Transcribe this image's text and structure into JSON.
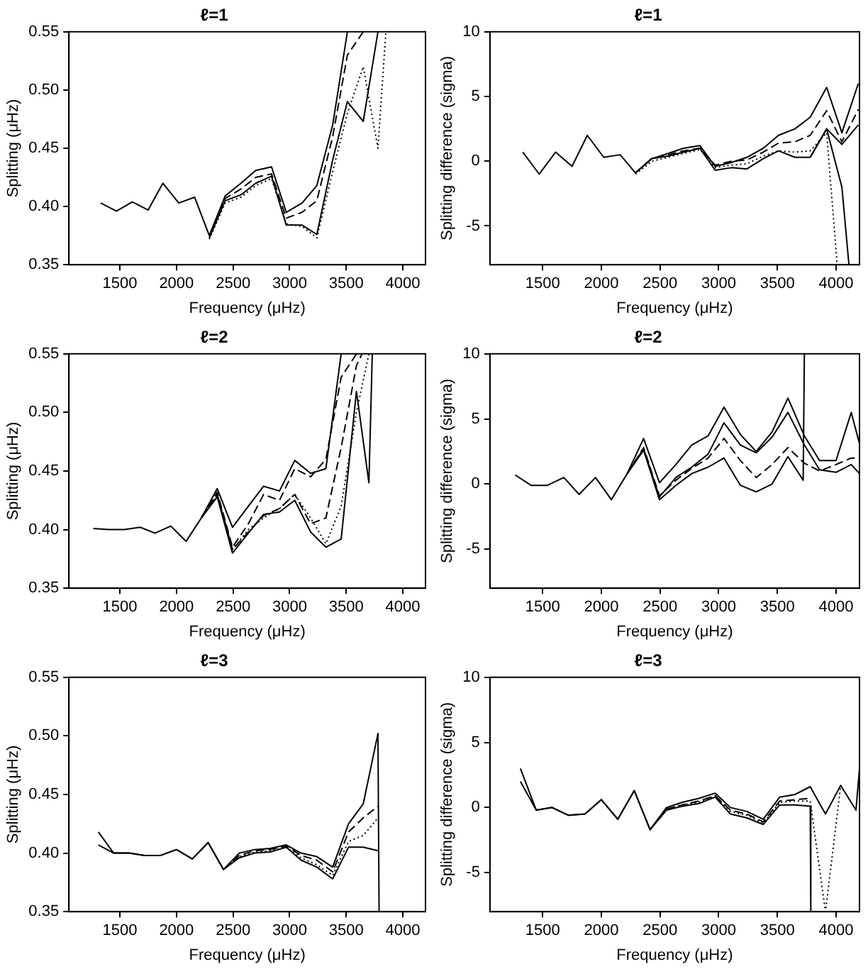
{
  "chart_data": [
    {
      "type": "line",
      "title": "ℓ=1",
      "xlabel": "Frequency (μHz)",
      "ylabel": "Splitting (μHz)",
      "xlim": [
        1050,
        4200
      ],
      "xticks": [
        1500,
        2000,
        2500,
        3000,
        3500,
        4000
      ],
      "ylim": [
        0.35,
        0.55
      ],
      "yticks": [
        {
          "value": 0.35,
          "label": "0.35"
        },
        {
          "value": 0.4,
          "label": "0.40"
        },
        {
          "value": 0.45,
          "label": "0.45"
        },
        {
          "value": 0.5,
          "label": "0.50"
        },
        {
          "value": 0.55,
          "label": "0.55"
        }
      ],
      "grid": false,
      "legend": false,
      "marker": "none",
      "series": [
        {
          "color": "#000000",
          "line_style": "solid",
          "x": [
            1330,
            1470,
            1610,
            1750,
            1880,
            2020,
            2160,
            2290,
            2430,
            2570,
            2700,
            2840,
            2970,
            3110,
            3240,
            3380,
            3510
          ],
          "values": [
            0.403,
            0.396,
            0.404,
            0.397,
            0.42,
            0.403,
            0.408,
            0.375,
            0.409,
            0.42,
            0.431,
            0.434,
            0.395,
            0.403,
            0.418,
            0.47,
            0.55
          ]
        },
        {
          "color": "#000000",
          "line_style": "dashed",
          "x": [
            2290,
            2430,
            2570,
            2700,
            2840,
            2970,
            3110,
            3240,
            3380,
            3510,
            3650
          ],
          "values": [
            0.375,
            0.407,
            0.415,
            0.425,
            0.428,
            0.39,
            0.395,
            0.405,
            0.46,
            0.53,
            0.55
          ]
        },
        {
          "color": "#000000",
          "line_style": "dotted",
          "x": [
            2290,
            2430,
            2570,
            2700,
            2840,
            2970,
            3110,
            3240,
            3380,
            3510,
            3650,
            3780,
            3850
          ],
          "values": [
            0.372,
            0.403,
            0.408,
            0.418,
            0.424,
            0.385,
            0.383,
            0.373,
            0.43,
            0.48,
            0.52,
            0.45,
            0.55
          ]
        },
        {
          "color": "#000000",
          "line_style": "solid",
          "x": [
            2290,
            2430,
            2570,
            2700,
            2840,
            2970,
            3110,
            3240,
            3380,
            3510,
            3650,
            3780
          ],
          "values": [
            0.373,
            0.405,
            0.41,
            0.42,
            0.426,
            0.384,
            0.384,
            0.376,
            0.44,
            0.49,
            0.473,
            0.55
          ]
        }
      ]
    },
    {
      "type": "line",
      "title": "ℓ=1",
      "xlabel": "Frequency (μHz)",
      "ylabel": "Splitting difference (sigma)",
      "xlim": [
        1050,
        4200
      ],
      "xticks": [
        1500,
        2000,
        2500,
        3000,
        3500,
        4000
      ],
      "ylim": [
        -8,
        10
      ],
      "yticks": [
        -5,
        0,
        5,
        10
      ],
      "grid": false,
      "legend": false,
      "marker": "none",
      "series": [
        {
          "color": "#000000",
          "line_style": "solid",
          "x": [
            1330,
            1470,
            1610,
            1750,
            1880,
            2020,
            2160,
            2290,
            2430,
            2570,
            2700,
            2840,
            2970,
            3110,
            3240,
            3380,
            3510,
            3650,
            3780,
            3920,
            4050,
            4190
          ],
          "values": [
            0.7,
            -1.0,
            0.7,
            -0.4,
            2.0,
            0.3,
            0.5,
            -0.9,
            0.2,
            0.6,
            1.0,
            1.2,
            -0.4,
            -0.1,
            0.3,
            1.0,
            2.0,
            2.5,
            3.4,
            5.7,
            2.2,
            6.0
          ]
        },
        {
          "color": "#000000",
          "line_style": "dashed",
          "x": [
            2290,
            2430,
            2570,
            2700,
            2840,
            2970,
            3110,
            3240,
            3380,
            3510,
            3650,
            3780,
            3920,
            4050,
            4190
          ],
          "values": [
            -0.9,
            0.2,
            0.5,
            0.8,
            1.0,
            -0.3,
            0.0,
            0.1,
            0.7,
            1.4,
            1.5,
            2.0,
            3.9,
            1.5,
            4.0
          ]
        },
        {
          "color": "#000000",
          "line_style": "dotted",
          "x": [
            2290,
            2430,
            2570,
            2700,
            2840,
            2970,
            3110,
            3240,
            3380,
            3510,
            3650,
            3780,
            3920,
            4010
          ],
          "values": [
            -1.0,
            0.0,
            0.3,
            0.6,
            0.9,
            -0.5,
            -0.3,
            -0.2,
            0.4,
            0.8,
            0.7,
            0.8,
            2.2,
            -8
          ]
        },
        {
          "color": "#000000",
          "line_style": "solid",
          "x": [
            2290,
            2430,
            2570,
            2700,
            2840,
            2970,
            3110,
            3240,
            3380,
            3510,
            3650,
            3780,
            3920,
            4050,
            4190
          ],
          "values": [
            -0.9,
            0.2,
            0.4,
            0.7,
            1.0,
            -0.7,
            -0.5,
            -0.6,
            0.2,
            0.8,
            0.3,
            0.3,
            2.5,
            1.3,
            2.8
          ]
        },
        {
          "color": "#000000",
          "line_style": "solid",
          "x": [
            3780,
            3920,
            4050,
            4110
          ],
          "values": [
            0.3,
            2.5,
            -2,
            -8
          ]
        }
      ]
    },
    {
      "type": "line",
      "title": "ℓ=2",
      "xlabel": "Frequency (μHz)",
      "ylabel": "Splitting (μHz)",
      "xlim": [
        1050,
        4200
      ],
      "xticks": [
        1500,
        2000,
        2500,
        3000,
        3500,
        4000
      ],
      "ylim": [
        0.35,
        0.55
      ],
      "yticks": [
        {
          "value": 0.35,
          "label": "0.35"
        },
        {
          "value": 0.4,
          "label": "0.40"
        },
        {
          "value": 0.45,
          "label": "0.45"
        },
        {
          "value": 0.5,
          "label": "0.50"
        },
        {
          "value": 0.55,
          "label": "0.55"
        }
      ],
      "grid": false,
      "legend": false,
      "marker": "none",
      "series": [
        {
          "color": "#000000",
          "line_style": "solid",
          "x": [
            1265,
            1400,
            1540,
            1680,
            1810,
            1950,
            2085,
            2220,
            2360,
            2495,
            2635,
            2770,
            2910,
            3045,
            3185,
            3320,
            3455
          ],
          "values": [
            0.401,
            0.4,
            0.4,
            0.402,
            0.397,
            0.403,
            0.39,
            0.41,
            0.435,
            0.402,
            0.42,
            0.437,
            0.433,
            0.459,
            0.448,
            0.452,
            0.55
          ]
        },
        {
          "color": "#000000",
          "line_style": "dashed",
          "x": [
            2220,
            2360,
            2495,
            2635,
            2770,
            2910,
            3045,
            3185,
            3320,
            3455,
            3590
          ],
          "values": [
            0.41,
            0.432,
            0.385,
            0.405,
            0.43,
            0.425,
            0.452,
            0.445,
            0.46,
            0.53,
            0.55
          ]
        },
        {
          "color": "#000000",
          "line_style": "dashed",
          "x": [
            2220,
            2360,
            2495,
            2635,
            2770,
            2910,
            3045,
            3185,
            3320,
            3455,
            3590,
            3640
          ],
          "values": [
            0.41,
            0.43,
            0.383,
            0.398,
            0.412,
            0.418,
            0.43,
            0.405,
            0.41,
            0.47,
            0.54,
            0.55
          ]
        },
        {
          "color": "#000000",
          "line_style": "dotted",
          "x": [
            2220,
            2360,
            2495,
            2635,
            2770,
            2910,
            3045,
            3185,
            3320,
            3455,
            3590,
            3700
          ],
          "values": [
            0.41,
            0.43,
            0.383,
            0.4,
            0.41,
            0.418,
            0.43,
            0.41,
            0.388,
            0.42,
            0.5,
            0.55
          ]
        },
        {
          "color": "#000000",
          "line_style": "solid",
          "x": [
            2220,
            2360,
            2495,
            2635,
            2770,
            2910,
            3045,
            3185,
            3320,
            3455,
            3590,
            3700,
            3730
          ],
          "values": [
            0.41,
            0.428,
            0.38,
            0.397,
            0.413,
            0.415,
            0.425,
            0.398,
            0.385,
            0.392,
            0.518,
            0.44,
            0.55
          ]
        }
      ]
    },
    {
      "type": "line",
      "title": "ℓ=2",
      "xlabel": "Frequency (μHz)",
      "ylabel": "Splitting difference (sigma)",
      "xlim": [
        1050,
        4200
      ],
      "xticks": [
        1500,
        2000,
        2500,
        3000,
        3500,
        4000
      ],
      "ylim": [
        -8,
        10
      ],
      "yticks": [
        -5,
        0,
        5,
        10
      ],
      "grid": false,
      "legend": false,
      "marker": "none",
      "series": [
        {
          "color": "#000000",
          "line_style": "solid",
          "x": [
            1265,
            1400,
            1540,
            1680,
            1810,
            1950,
            2085,
            2220,
            2360,
            2495,
            2635,
            2770,
            2910,
            3045,
            3185,
            3320,
            3455,
            3590,
            3730,
            3860,
            4000,
            4130,
            4200
          ],
          "values": [
            0.7,
            -0.1,
            -0.1,
            0.5,
            -0.8,
            0.5,
            -1.2,
            0.8,
            3.5,
            0.1,
            1.5,
            3.0,
            3.7,
            5.9,
            3.8,
            2.5,
            4.0,
            6.6,
            3.7,
            1.8,
            1.8,
            5.5,
            3.1
          ]
        },
        {
          "color": "#000000",
          "line_style": "dashed",
          "x": [
            2220,
            2360,
            2495,
            2635,
            2770,
            2910,
            3045,
            3185,
            3320,
            3455,
            3590,
            3730,
            3860,
            4000,
            4130,
            4200
          ],
          "values": [
            0.8,
            2.8,
            -0.9,
            0.3,
            1.2,
            2.0,
            3.5,
            1.8,
            0.5,
            1.5,
            2.8,
            1.6,
            1.0,
            1.5,
            2.0,
            2.0
          ]
        },
        {
          "color": "#000000",
          "line_style": "solid",
          "x": [
            2220,
            2360,
            2495,
            2635,
            2770,
            2910,
            3045,
            3185,
            3320,
            3455,
            3590,
            3730,
            3860,
            4000,
            4130,
            4200
          ],
          "values": [
            0.8,
            2.7,
            -1.0,
            0.5,
            1.3,
            2.3,
            4.7,
            3.0,
            2.4,
            3.6,
            5.5,
            3.0,
            1.1,
            0.9,
            1.5,
            0.8
          ]
        },
        {
          "color": "#000000",
          "line_style": "solid",
          "x": [
            2220,
            2360,
            2495,
            2635,
            2770,
            2910,
            3045,
            3185,
            3320,
            3455,
            3590,
            3720,
            3730
          ],
          "values": [
            0.8,
            2.6,
            -1.2,
            -0.1,
            0.8,
            1.3,
            2.0,
            -0.1,
            -0.6,
            0.0,
            2.1,
            0.3,
            10
          ]
        }
      ]
    },
    {
      "type": "line",
      "title": "ℓ=3",
      "xlabel": "Frequency (μHz)",
      "ylabel": "Splitting (μHz)",
      "xlim": [
        1050,
        4200
      ],
      "xticks": [
        1500,
        2000,
        2500,
        3000,
        3500,
        4000
      ],
      "ylim": [
        0.35,
        0.55
      ],
      "yticks": [
        {
          "value": 0.35,
          "label": "0.35"
        },
        {
          "value": 0.4,
          "label": "0.40"
        },
        {
          "value": 0.45,
          "label": "0.45"
        },
        {
          "value": 0.5,
          "label": "0.50"
        },
        {
          "value": 0.55,
          "label": "0.55"
        }
      ],
      "grid": false,
      "legend": false,
      "marker": "none",
      "series": [
        {
          "color": "#000000",
          "line_style": "solid",
          "x": [
            1310,
            1445,
            1580,
            1720,
            1860,
            2000,
            2140,
            2280,
            2415,
            2555,
            2690,
            2830,
            2970,
            3100,
            3240,
            3380,
            3520,
            3650,
            3780,
            3790
          ],
          "values": [
            0.418,
            0.4,
            0.4,
            0.398,
            0.398,
            0.403,
            0.395,
            0.409,
            0.386,
            0.4,
            0.403,
            0.404,
            0.407,
            0.4,
            0.397,
            0.388,
            0.425,
            0.442,
            0.502,
            0.35
          ]
        },
        {
          "color": "#000000",
          "line_style": "dashed",
          "x": [
            2415,
            2555,
            2690,
            2830,
            2970,
            3100,
            3240,
            3380,
            3520,
            3650,
            3780
          ],
          "values": [
            0.386,
            0.398,
            0.402,
            0.403,
            0.406,
            0.398,
            0.394,
            0.384,
            0.418,
            0.43,
            0.44
          ]
        },
        {
          "color": "#000000",
          "line_style": "dotted",
          "x": [
            2415,
            2555,
            2690,
            2830,
            2970,
            3100,
            3240,
            3380,
            3520,
            3650,
            3780
          ],
          "values": [
            0.386,
            0.397,
            0.401,
            0.402,
            0.405,
            0.396,
            0.39,
            0.381,
            0.41,
            0.415,
            0.43
          ]
        },
        {
          "color": "#000000",
          "line_style": "solid",
          "x": [
            1310,
            1445,
            1580,
            1720,
            1860,
            2000,
            2140,
            2280,
            2415,
            2555,
            2690,
            2830,
            2970,
            3100,
            3240,
            3380,
            3520,
            3650,
            3780
          ],
          "values": [
            0.407,
            0.4,
            0.4,
            0.398,
            0.398,
            0.403,
            0.395,
            0.409,
            0.386,
            0.396,
            0.4,
            0.401,
            0.405,
            0.394,
            0.388,
            0.378,
            0.405,
            0.405,
            0.402
          ]
        }
      ]
    },
    {
      "type": "line",
      "title": "ℓ=3",
      "xlabel": "Frequency (μHz)",
      "ylabel": "Splitting difference (sigma)",
      "xlim": [
        1050,
        4200
      ],
      "xticks": [
        1500,
        2000,
        2500,
        3000,
        3500,
        4000
      ],
      "ylim": [
        -8,
        10
      ],
      "yticks": [
        -5,
        0,
        5,
        10
      ],
      "grid": false,
      "legend": false,
      "marker": "none",
      "series": [
        {
          "color": "#000000",
          "line_style": "solid",
          "x": [
            1310,
            1445,
            1580,
            1720,
            1860,
            2000,
            2140,
            2280,
            2415,
            2555,
            2690,
            2830,
            2970,
            3100,
            3240,
            3380,
            3520,
            3650,
            3780,
            3910,
            4040,
            4170,
            4200
          ],
          "values": [
            3.0,
            -0.2,
            0.0,
            -0.6,
            -0.5,
            0.6,
            -0.9,
            1.3,
            -1.7,
            0.0,
            0.4,
            0.7,
            1.1,
            0.0,
            -0.3,
            -0.9,
            0.8,
            1.0,
            1.6,
            -0.5,
            1.7,
            -0.2,
            3.0
          ]
        },
        {
          "color": "#000000",
          "line_style": "dashed",
          "x": [
            2415,
            2555,
            2690,
            2830,
            2970,
            3100,
            3240,
            3380,
            3520,
            3650,
            3780
          ],
          "values": [
            -1.7,
            -0.1,
            0.2,
            0.5,
            0.9,
            -0.2,
            -0.5,
            -1.1,
            0.5,
            0.6,
            0.7
          ]
        },
        {
          "color": "#000000",
          "line_style": "dotted",
          "x": [
            2415,
            2555,
            2690,
            2830,
            2970,
            3100,
            3240,
            3380,
            3520,
            3650,
            3780,
            3910,
            4040
          ],
          "values": [
            -1.7,
            -0.1,
            0.2,
            0.4,
            0.9,
            -0.3,
            -0.6,
            -1.2,
            0.4,
            0.5,
            0.5,
            -8,
            1.7
          ]
        },
        {
          "color": "#000000",
          "line_style": "solid",
          "x": [
            1310,
            1445,
            1580,
            1720,
            1860,
            2000,
            2140,
            2280,
            2415,
            2555,
            2690,
            2830,
            2970,
            3100,
            3240,
            3380,
            3520,
            3650,
            3780,
            3785
          ],
          "values": [
            2.0,
            -0.2,
            0.0,
            -0.6,
            -0.5,
            0.6,
            -0.9,
            1.3,
            -1.7,
            -0.2,
            0.1,
            0.3,
            0.8,
            -0.5,
            -0.8,
            -1.3,
            0.2,
            0.2,
            0.1,
            -8
          ]
        }
      ]
    }
  ]
}
